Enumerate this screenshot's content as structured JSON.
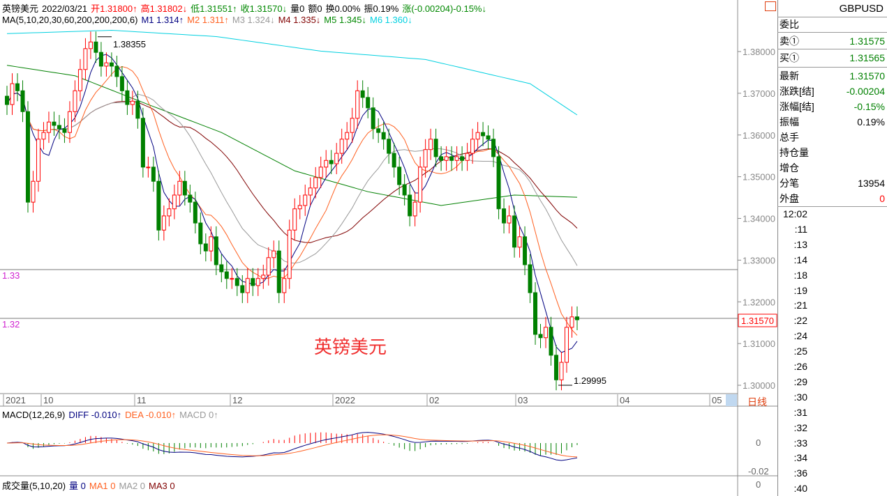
{
  "header": {
    "name": "英镑美元",
    "date": "2022/03/21",
    "open": "开1.31800↑",
    "high": "高1.31802↓",
    "low": "低1.31551↑",
    "close": "收1.31570↓",
    "vol": "量0",
    "amount": "额0",
    "turnover": "换0.00%",
    "amplitude": "振0.19%",
    "change": "涨(-0.00204)-0.15%↓"
  },
  "ma_header": {
    "label": "MA(5,10,20,30,60,200,200,200,6)",
    "m1": "M1 1.314↑",
    "m2": "M2 1.311↑",
    "m3": "M3 1.324↓",
    "m4": "M4 1.335↓",
    "m5": "M5 1.345↓",
    "m6": "M6 1.360↓"
  },
  "colors": {
    "up": "#ff0000",
    "down": "#008000",
    "m1": "#000080",
    "m2": "#ff6020",
    "m3": "#999999",
    "m4": "#800000",
    "m5": "#008000",
    "m6": "#00d0e0"
  },
  "watermark": "英镑美元",
  "quote": {
    "symbol": "GBPUSD",
    "rows": [
      {
        "label": "委比",
        "value": ""
      },
      {
        "label": "卖①",
        "value": "1.31575",
        "color": "#008000"
      },
      {
        "label": "买①",
        "value": "1.31565",
        "color": "#008000"
      },
      {
        "label": "最新",
        "value": "1.31570",
        "color": "#008000"
      },
      {
        "label": "涨跌[结]",
        "value": "-0.00204",
        "color": "#008000"
      },
      {
        "label": "涨幅[结]",
        "value": "-0.15%",
        "color": "#008000"
      },
      {
        "label": "振幅",
        "value": "0.19%",
        "color": "#000"
      },
      {
        "label": "总手",
        "value": ""
      },
      {
        "label": "持仓量",
        "value": ""
      },
      {
        "label": "增仓",
        "value": ""
      },
      {
        "label": "分笔",
        "value": "13954",
        "color": "#000"
      },
      {
        "label": "外盘",
        "value": "0",
        "color": "#ff0000"
      }
    ],
    "times": [
      "12:02",
      ":11",
      ":13",
      ":14",
      ":18",
      ":19",
      ":21",
      ":22",
      ":24",
      ":25",
      ":26",
      ":29",
      ":30",
      ":31",
      ":32",
      ":33",
      ":34",
      ":36",
      ":40"
    ]
  },
  "macd_header": {
    "label": "MACD(12,26,9)",
    "diff": "DIFF -0.010↑",
    "dea": "DEA -0.010↑",
    "macd": "MACD 0↑"
  },
  "macd_axis": [
    "0",
    "-0.02"
  ],
  "vol_header": {
    "label": "成交量(5,10,20)",
    "vol": "量 0",
    "ma1": "MA1 0",
    "ma2": "MA2 0",
    "ma3": "MA3 0"
  },
  "vol_axis": "0",
  "period_label": "日线",
  "chart_data": {
    "type": "candlestick",
    "ylim": [
      1.2995,
      1.387
    ],
    "y_ticks": [
      "1.38000",
      "1.37000",
      "1.36000",
      "1.35000",
      "1.34000",
      "1.33000",
      "1.32000",
      "1.31000",
      "1.30000"
    ],
    "x_ticks": [
      "2021",
      "10",
      "11",
      "12",
      "2022",
      "02",
      "03",
      "04",
      "05"
    ],
    "ref_lines": [
      {
        "label": "1.33",
        "price": 1.3277
      },
      {
        "label": "1.32",
        "price": 1.3157
      }
    ],
    "last_price": "1.31570",
    "annotations": [
      {
        "text": "1.38355",
        "price": 1.38355
      },
      {
        "text": "1.29995",
        "price": 1.29995
      }
    ],
    "close": [
      1.3673,
      1.3723,
      1.3706,
      1.3656,
      1.3439,
      1.3489,
      1.359,
      1.3606,
      1.3631,
      1.3623,
      1.3615,
      1.3606,
      1.3656,
      1.3706,
      1.3757,
      1.3807,
      1.3823,
      1.3798,
      1.3765,
      1.3773,
      1.3765,
      1.374,
      1.3706,
      1.3673,
      1.3681,
      1.364,
      1.3523,
      1.3523,
      1.3489,
      1.3372,
      1.3406,
      1.3423,
      1.3456,
      1.3489,
      1.3456,
      1.3439,
      1.3389,
      1.3339,
      1.3322,
      1.3356,
      1.3289,
      1.3272,
      1.3256,
      1.3256,
      1.3239,
      1.3222,
      1.3256,
      1.3239,
      1.3256,
      1.3264,
      1.3306,
      1.3322,
      1.3222,
      1.3256,
      1.3372,
      1.3423,
      1.3431,
      1.3456,
      1.3473,
      1.3498,
      1.3523,
      1.3539,
      1.3531,
      1.3556,
      1.359,
      1.3606,
      1.364,
      1.3706,
      1.369,
      1.3665,
      1.3615,
      1.3606,
      1.359,
      1.3556,
      1.3523,
      1.3481,
      1.3456,
      1.3406,
      1.3439,
      1.3523,
      1.3565,
      1.359,
      1.3548,
      1.3539,
      1.3548,
      1.3539,
      1.3548,
      1.3539,
      1.3556,
      1.359,
      1.3606,
      1.3598,
      1.359,
      1.3548,
      1.3423,
      1.3389,
      1.3406,
      1.3331,
      1.3356,
      1.3289,
      1.3222,
      1.3122,
      1.3114,
      1.3139,
      1.3072,
      1.3013,
      1.3055,
      1.3139,
      1.3164,
      1.3157
    ],
    "ma200_anchors": [
      [
        0,
        1.3843
      ],
      [
        20,
        1.3851
      ],
      [
        40,
        1.3836
      ],
      [
        60,
        1.3801
      ],
      [
        80,
        1.3781
      ],
      [
        100,
        1.3723
      ],
      [
        115,
        1.3598
      ]
    ],
    "ma60_anchors": [
      [
        0,
        1.3767
      ],
      [
        13,
        1.3742
      ],
      [
        27,
        1.3673
      ],
      [
        41,
        1.3606
      ],
      [
        55,
        1.3514
      ],
      [
        69,
        1.3464
      ],
      [
        83,
        1.3431
      ],
      [
        97,
        1.3456
      ],
      [
        115,
        1.3448
      ]
    ]
  }
}
